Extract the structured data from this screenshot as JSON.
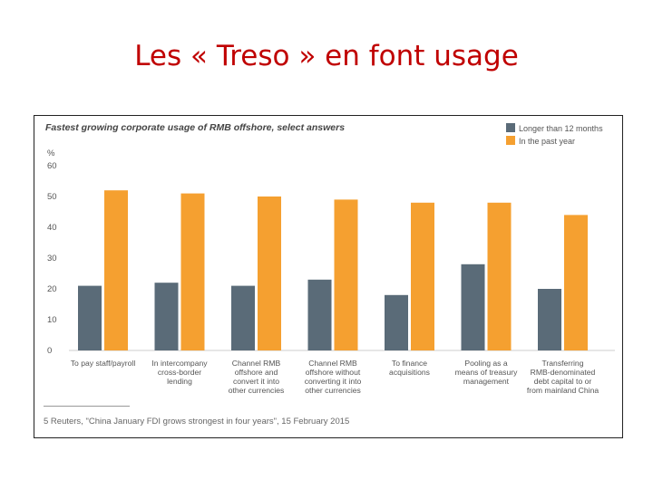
{
  "slide": {
    "title": "Les « Treso » en font usage"
  },
  "chart_data": {
    "type": "bar",
    "title": "Fastest growing corporate usage of RMB offshore, select answers",
    "ylabel": "%",
    "ylim": [
      0,
      60
    ],
    "yticks": [
      0,
      10,
      20,
      30,
      40,
      50,
      60
    ],
    "grid": false,
    "legend": "top-right",
    "categories": [
      [
        "To pay staff/payroll"
      ],
      [
        "In intercompany",
        "cross-border",
        "lending"
      ],
      [
        "Channel RMB",
        "offshore and",
        "convert it into",
        "other currencies"
      ],
      [
        "Channel RMB",
        "offshore without",
        "converting it into",
        "other currencies"
      ],
      [
        "To finance",
        "acquisitions"
      ],
      [
        "Pooling as a",
        "means of treasury",
        "management"
      ],
      [
        "Transferring",
        "RMB-denominated",
        "debt capital to or",
        "from mainland China"
      ]
    ],
    "series": [
      {
        "name": "Longer than 12 months",
        "color": "#5a6b78",
        "values": [
          21,
          22,
          21,
          23,
          18,
          28,
          20
        ]
      },
      {
        "name": "In the past year",
        "color": "#f5a030",
        "values": [
          52,
          51,
          50,
          49,
          48,
          48,
          44
        ]
      }
    ],
    "footnote": "5  Reuters, \"China January FDI grows strongest in four years\", 15 February 2015"
  }
}
